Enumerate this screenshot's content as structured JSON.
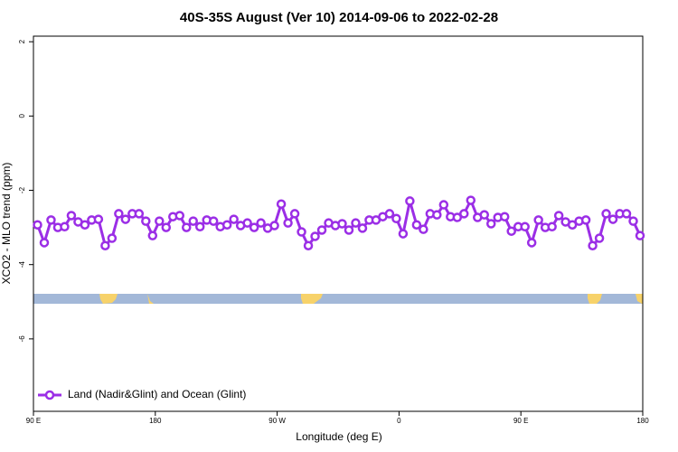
{
  "chart_data": {
    "type": "line",
    "title": "40S-35S August (Ver 10)   2014-09-06 to 2022-02-28",
    "xlabel": "Longitude (deg E)",
    "ylabel": "XCO2 - MLO trend (ppm)",
    "xlim": [
      90,
      540
    ],
    "ylim": [
      -7.95,
      2.15
    ],
    "xticks": [
      {
        "value": 90,
        "label": "90 E"
      },
      {
        "value": 180,
        "label": "180"
      },
      {
        "value": 270,
        "label": "90 W"
      },
      {
        "value": 360,
        "label": "0"
      },
      {
        "value": 450,
        "label": "90 E"
      },
      {
        "value": 540,
        "label": "180"
      }
    ],
    "yticks": [
      2,
      0,
      -2,
      -4,
      -6
    ],
    "legend": "bottom-left",
    "x": [
      93,
      98,
      103,
      108,
      113,
      118,
      123,
      128,
      133,
      138,
      143,
      148,
      153,
      158,
      163,
      168,
      173,
      178,
      183,
      188,
      193,
      198,
      203,
      208,
      213,
      218,
      223,
      228,
      233,
      238,
      243,
      248,
      253,
      258,
      263,
      268,
      273,
      278,
      283,
      288,
      293,
      298,
      303,
      308,
      313,
      318,
      323,
      328,
      333,
      338,
      343,
      348,
      353,
      358,
      363,
      368,
      373,
      378,
      383,
      388,
      393,
      398,
      403,
      408,
      413,
      418,
      423,
      428,
      433,
      438,
      443,
      448,
      453,
      458,
      463,
      468,
      473,
      478,
      483,
      488,
      493,
      498,
      503,
      508,
      513,
      518,
      523,
      528,
      533,
      538
    ],
    "series": [
      {
        "name": "Land (Nadir&Glint) and Ocean (Glint)",
        "color": "#9b2ee6",
        "values": [
          -2.93,
          -3.41,
          -2.8,
          -3.0,
          -2.98,
          -2.68,
          -2.85,
          -2.93,
          -2.8,
          -2.78,
          -3.49,
          -3.29,
          -2.63,
          -2.78,
          -2.63,
          -2.63,
          -2.83,
          -3.22,
          -2.83,
          -3.0,
          -2.71,
          -2.68,
          -3.0,
          -2.83,
          -2.98,
          -2.8,
          -2.83,
          -2.98,
          -2.93,
          -2.78,
          -2.95,
          -2.88,
          -3.0,
          -2.88,
          -3.02,
          -2.95,
          -2.37,
          -2.88,
          -2.63,
          -3.12,
          -3.49,
          -3.24,
          -3.07,
          -2.88,
          -2.95,
          -2.9,
          -3.07,
          -2.88,
          -3.02,
          -2.8,
          -2.8,
          -2.71,
          -2.63,
          -2.76,
          -3.17,
          -2.29,
          -2.93,
          -3.05,
          -2.63,
          -2.66,
          -2.39,
          -2.71,
          -2.73,
          -2.63,
          -2.27,
          -2.73,
          -2.66,
          -2.9,
          -2.73,
          -2.71,
          -3.1,
          -2.98,
          -2.98,
          -3.41,
          -2.8,
          -3.0,
          -2.98,
          -2.68,
          -2.85,
          -2.93,
          -2.83,
          -2.8,
          -3.49,
          -3.29,
          -2.63,
          -2.78,
          -2.63,
          -2.63,
          -2.83,
          -3.22
        ]
      }
    ]
  }
}
